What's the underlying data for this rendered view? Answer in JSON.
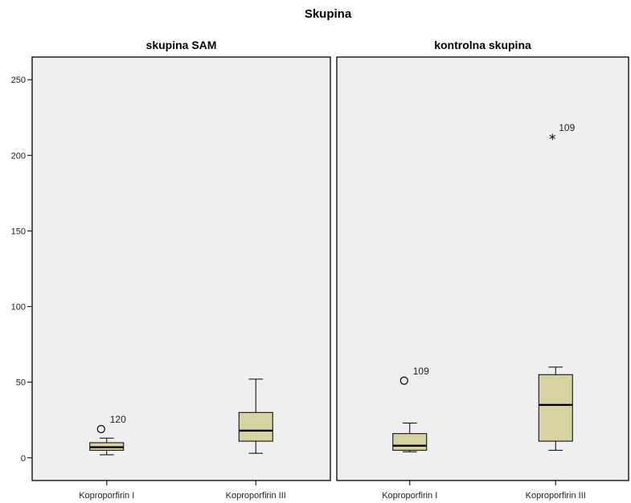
{
  "chart_data": {
    "type": "boxplot",
    "title": "Skupina",
    "ylim": [
      -15,
      265
    ],
    "yticks": [
      0,
      50,
      100,
      150,
      200,
      250
    ],
    "colors": {
      "box_fill": "#d6d2a2",
      "panel_bg": "#efefef",
      "line": "#000000"
    },
    "panels": [
      {
        "name": "skupina SAM",
        "categories": [
          "Koproporfirin I",
          "Koproporfirin III"
        ],
        "boxes": [
          {
            "min": 2,
            "q1": 5,
            "median": 7,
            "q3": 10,
            "max": 13,
            "outliers": [
              {
                "value": 19,
                "label": "120",
                "marker": "circle"
              }
            ]
          },
          {
            "min": 3,
            "q1": 11,
            "median": 18,
            "q3": 30,
            "max": 52,
            "outliers": []
          }
        ]
      },
      {
        "name": "kontrolna skupina",
        "categories": [
          "Koproporfirin I",
          "Koproporfirin III"
        ],
        "boxes": [
          {
            "min": 4,
            "q1": 5,
            "median": 8,
            "q3": 16,
            "max": 23,
            "outliers": [
              {
                "value": 51,
                "label": "109",
                "marker": "circle"
              }
            ]
          },
          {
            "min": 5,
            "q1": 11,
            "median": 35,
            "q3": 55,
            "max": 60,
            "outliers": [
              {
                "value": 212,
                "label": "109",
                "marker": "star"
              }
            ]
          }
        ]
      }
    ]
  }
}
